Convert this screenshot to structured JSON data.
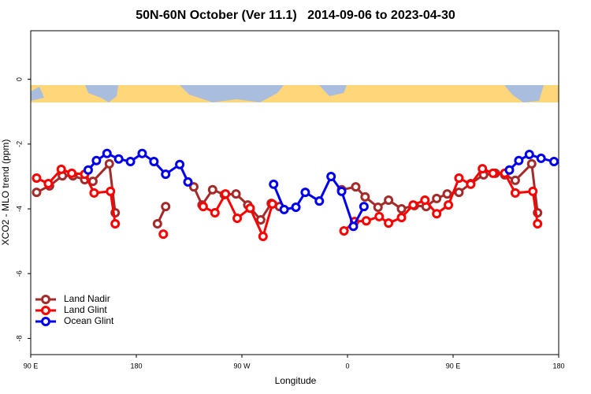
{
  "chart_data": {
    "type": "line",
    "title": "50N-60N October (Ver 11.1)   2014-09-06 to 2023-04-30",
    "x_label": "Longitude",
    "y_label": "XCO2 - MLO trend (ppm)",
    "xlim": [
      90,
      540
    ],
    "xticks": [
      {
        "value": 90,
        "label": "90 E"
      },
      180,
      {
        "value": 270,
        "label": "90 W"
      },
      {
        "value": 360,
        "label": "0"
      },
      {
        "value": 450,
        "label": "90 E"
      },
      {
        "value": 540,
        "label": "180"
      }
    ],
    "ylim": [
      -8.5,
      1.5
    ],
    "yticks": [
      0,
      -2,
      -4,
      -6,
      -8
    ],
    "legend": "bottom-left",
    "series": [
      {
        "name": "Land Nadir",
        "color": "#a52a2a",
        "x": [
          95,
          106,
          117,
          126,
          136,
          143,
          157,
          162,
          null,
          198,
          205,
          null,
          229,
          236,
          245,
          255,
          265,
          275,
          286,
          295,
          302,
          null,
          355,
          367,
          375,
          386,
          395,
          406,
          417,
          427,
          436,
          445,
          455,
          465,
          476,
          486,
          494,
          503,
          517,
          522
        ],
        "values": [
          -3.49,
          -3.29,
          -2.98,
          -2.98,
          -3.1,
          -3.15,
          -2.61,
          -4.12,
          null,
          -4.46,
          -3.93,
          null,
          -3.32,
          -3.88,
          -3.41,
          -3.56,
          -3.54,
          -3.88,
          -4.34,
          -3.83,
          -3.93,
          null,
          -3.41,
          -3.32,
          -3.63,
          -3.95,
          -3.73,
          -4.0,
          -3.9,
          -3.93,
          -3.68,
          -3.54,
          -3.49,
          -3.22,
          -2.95,
          -2.9,
          -2.95,
          -3.12,
          -2.61,
          -4.12
        ]
      },
      {
        "name": "Land Glint",
        "color": "#ff0000",
        "x": [
          95,
          105,
          116,
          125,
          136,
          144,
          158,
          162,
          null,
          203,
          null,
          237,
          247,
          256,
          266,
          277,
          288,
          296,
          null,
          357,
          366,
          376,
          387,
          395,
          406,
          416,
          426,
          436,
          446,
          455,
          465,
          475,
          484,
          494,
          503,
          518,
          522
        ],
        "values": [
          -3.05,
          -3.22,
          -2.78,
          -2.9,
          -2.93,
          -3.51,
          -3.46,
          -4.46,
          null,
          -4.78,
          null,
          -3.93,
          -4.12,
          -3.54,
          -4.29,
          -3.98,
          -4.85,
          -3.85,
          null,
          -4.68,
          -4.39,
          -4.37,
          -4.24,
          -4.44,
          -4.27,
          -3.88,
          -3.73,
          -4.15,
          -3.88,
          -3.05,
          -3.24,
          -2.76,
          -2.9,
          -2.9,
          -3.51,
          -3.46,
          -4.46
        ]
      },
      {
        "name": "Ocean Glint",
        "color": "#0000ee",
        "x": [
          139,
          146,
          155,
          165,
          175,
          185,
          195,
          205,
          217,
          224,
          null,
          297,
          306,
          316,
          324,
          336,
          346,
          355,
          365,
          374,
          null,
          498,
          506,
          515,
          525,
          536
        ],
        "values": [
          -2.8,
          -2.51,
          -2.29,
          -2.46,
          -2.54,
          -2.29,
          -2.54,
          -2.93,
          -2.63,
          -3.17,
          null,
          -3.24,
          -4.02,
          -3.95,
          -3.49,
          -3.76,
          -3.0,
          -3.46,
          -4.54,
          -3.93,
          null,
          -2.8,
          -2.51,
          -2.32,
          -2.44,
          -2.54
        ]
      }
    ]
  }
}
